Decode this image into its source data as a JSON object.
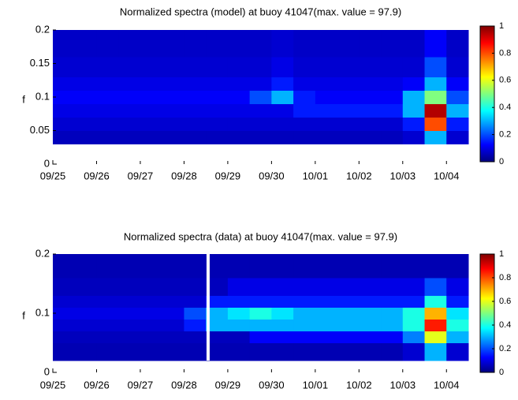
{
  "chart_data": [
    {
      "type": "heatmap",
      "title": "Normalized spectra (model) at buoy 41047(max. value = 97.9)",
      "y_label": "f",
      "xlim": [
        0,
        9.5
      ],
      "ylim": [
        0,
        0.2
      ],
      "xticks": [
        {
          "value": 0,
          "label": "09/25"
        },
        {
          "value": 1,
          "label": "09/26"
        },
        {
          "value": 2,
          "label": "09/27"
        },
        {
          "value": 3,
          "label": "09/28"
        },
        {
          "value": 4,
          "label": "09/29"
        },
        {
          "value": 5,
          "label": "09/30"
        },
        {
          "value": 6,
          "label": "10/01"
        },
        {
          "value": 7,
          "label": "10/02"
        },
        {
          "value": 8,
          "label": "10/03"
        },
        {
          "value": 9,
          "label": "10/04"
        }
      ],
      "yticks": [
        0,
        0.05,
        0.1,
        0.15,
        0.2
      ],
      "x_edges": [
        0,
        0.5,
        1,
        1.5,
        2,
        2.5,
        3,
        3.5,
        4,
        4.5,
        5,
        5.5,
        6,
        6.5,
        7,
        7.5,
        8,
        8.5,
        9,
        9.5
      ],
      "y_edges": [
        0.03,
        0.05,
        0.07,
        0.09,
        0.11,
        0.13,
        0.16,
        0.2
      ],
      "values": [
        [
          0.06,
          0.06,
          0.06,
          0.06,
          0.06,
          0.06,
          0.06,
          0.06,
          0.06,
          0.06,
          0.06,
          0.06,
          0.06,
          0.06,
          0.06,
          0.06,
          0.08,
          0.3,
          0.08
        ],
        [
          0.08,
          0.08,
          0.08,
          0.08,
          0.08,
          0.08,
          0.08,
          0.08,
          0.08,
          0.08,
          0.08,
          0.08,
          0.08,
          0.08,
          0.08,
          0.08,
          0.15,
          0.8,
          0.15
        ],
        [
          0.1,
          0.1,
          0.1,
          0.1,
          0.1,
          0.1,
          0.1,
          0.1,
          0.1,
          0.1,
          0.1,
          0.15,
          0.15,
          0.15,
          0.15,
          0.15,
          0.3,
          0.95,
          0.3
        ],
        [
          0.12,
          0.12,
          0.12,
          0.12,
          0.12,
          0.12,
          0.12,
          0.12,
          0.12,
          0.2,
          0.3,
          0.15,
          0.12,
          0.12,
          0.12,
          0.12,
          0.3,
          0.5,
          0.2
        ],
        [
          0.1,
          0.1,
          0.1,
          0.1,
          0.1,
          0.1,
          0.1,
          0.1,
          0.1,
          0.1,
          0.15,
          0.1,
          0.1,
          0.1,
          0.1,
          0.1,
          0.12,
          0.3,
          0.12
        ],
        [
          0.08,
          0.08,
          0.08,
          0.08,
          0.08,
          0.08,
          0.08,
          0.08,
          0.08,
          0.08,
          0.1,
          0.08,
          0.08,
          0.08,
          0.08,
          0.08,
          0.08,
          0.2,
          0.08
        ],
        [
          0.07,
          0.07,
          0.07,
          0.07,
          0.07,
          0.07,
          0.07,
          0.07,
          0.07,
          0.07,
          0.08,
          0.07,
          0.07,
          0.07,
          0.07,
          0.07,
          0.07,
          0.12,
          0.07
        ]
      ],
      "clim": [
        0,
        1
      ],
      "colorbar_ticks": [
        0,
        0.2,
        0.4,
        0.6,
        0.8,
        1
      ]
    },
    {
      "type": "heatmap",
      "title": "Normalized spectra (data) at buoy 41047(max. value = 97.9)",
      "y_label": "f",
      "xlim": [
        0,
        9.5
      ],
      "ylim": [
        0,
        0.2
      ],
      "xticks": [
        {
          "value": 0,
          "label": "09/25"
        },
        {
          "value": 1,
          "label": "09/26"
        },
        {
          "value": 2,
          "label": "09/27"
        },
        {
          "value": 3,
          "label": "09/28"
        },
        {
          "value": 4,
          "label": "09/29"
        },
        {
          "value": 5,
          "label": "09/30"
        },
        {
          "value": 6,
          "label": "10/01"
        },
        {
          "value": 7,
          "label": "10/02"
        },
        {
          "value": 8,
          "label": "10/03"
        },
        {
          "value": 9,
          "label": "10/04"
        }
      ],
      "yticks": [
        0,
        0.1,
        0.2
      ],
      "x_edges": [
        0,
        0.5,
        1,
        1.5,
        2,
        2.5,
        3,
        3.5,
        4,
        4.5,
        5,
        5.5,
        6,
        6.5,
        7,
        7.5,
        8,
        8.5,
        9,
        9.5
      ],
      "y_edges": [
        0.02,
        0.05,
        0.07,
        0.09,
        0.11,
        0.13,
        0.16,
        0.2
      ],
      "values": [
        [
          0.05,
          0.05,
          0.05,
          0.05,
          0.05,
          0.05,
          0.05,
          0.05,
          0.05,
          0.05,
          0.05,
          0.05,
          0.05,
          0.05,
          0.05,
          0.05,
          0.08,
          0.3,
          0.08
        ],
        [
          0.06,
          0.06,
          0.06,
          0.06,
          0.06,
          0.06,
          0.06,
          0.06,
          0.06,
          0.12,
          0.12,
          0.12,
          0.12,
          0.12,
          0.12,
          0.12,
          0.25,
          0.6,
          0.3
        ],
        [
          0.08,
          0.08,
          0.08,
          0.08,
          0.08,
          0.08,
          0.15,
          0.3,
          0.3,
          0.3,
          0.3,
          0.3,
          0.3,
          0.3,
          0.3,
          0.3,
          0.4,
          0.85,
          0.4
        ],
        [
          0.1,
          0.1,
          0.1,
          0.1,
          0.1,
          0.1,
          0.2,
          0.3,
          0.35,
          0.4,
          0.35,
          0.3,
          0.3,
          0.3,
          0.3,
          0.3,
          0.4,
          0.7,
          0.35
        ],
        [
          0.08,
          0.08,
          0.08,
          0.08,
          0.08,
          0.08,
          0.08,
          0.15,
          0.15,
          0.15,
          0.15,
          0.15,
          0.15,
          0.15,
          0.15,
          0.15,
          0.15,
          0.4,
          0.15
        ],
        [
          0.06,
          0.06,
          0.06,
          0.06,
          0.06,
          0.06,
          0.06,
          0.06,
          0.1,
          0.1,
          0.1,
          0.1,
          0.1,
          0.1,
          0.1,
          0.1,
          0.1,
          0.2,
          0.1
        ],
        [
          0.05,
          0.05,
          0.05,
          0.05,
          0.05,
          0.05,
          0.05,
          0.05,
          0.05,
          0.05,
          0.05,
          0.05,
          0.05,
          0.05,
          0.05,
          0.05,
          0.05,
          0.05,
          0.05
        ]
      ],
      "missing_x": 3.55,
      "clim": [
        0,
        1
      ],
      "colorbar_ticks": [
        0,
        0.2,
        0.4,
        0.6,
        0.8,
        1
      ]
    }
  ]
}
